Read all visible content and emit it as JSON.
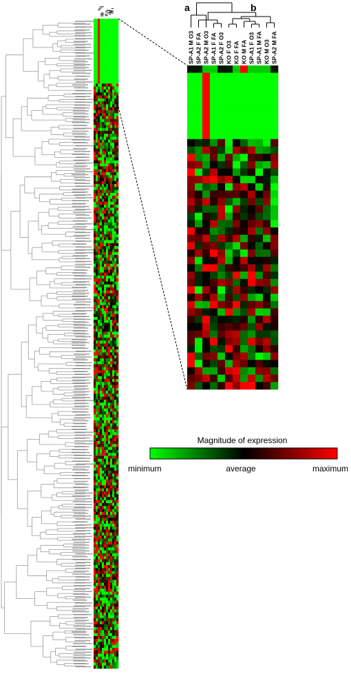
{
  "columns": [
    "SP-A1 M O3",
    "SP-A2 F FA",
    "SP-A2 M O3",
    "SP-A1 F FA",
    "SP-A2 F O3",
    "KO F O3",
    "KO F FA",
    "KO M FA",
    "SP-A1 F O3",
    "SP-A1 M FA",
    "KO M O3",
    "SP-A2 M FA"
  ],
  "cluster_labels": {
    "a": "a",
    "b": "b"
  },
  "legend": {
    "title": "Magnitude of expression",
    "min_label": "minimum",
    "mid_label": "average",
    "max_label": "maximum",
    "colors": {
      "low": "#00ff00",
      "mid": "#000000",
      "high": "#ff0000"
    }
  },
  "colors": {
    "background": "#ffffff",
    "dendrogram_line": "#9a9a9a",
    "zoom_dendrogram_line": "#000000"
  }
}
